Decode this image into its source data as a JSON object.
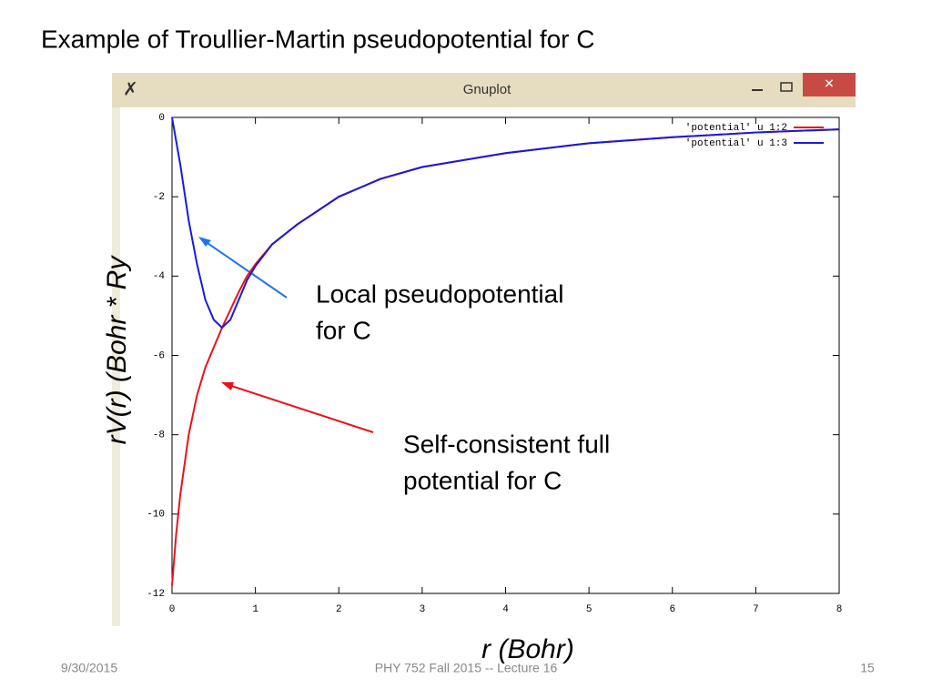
{
  "slide_title": "Example of Troullier-Martin pseudopotential for C",
  "window_title": "Gnuplot",
  "footer": {
    "date": "9/30/2015",
    "course": "PHY 752  Fall 2015 -- Lecture 16",
    "page": "15"
  },
  "chart_data": {
    "type": "line",
    "x_label": "r (Bohr)",
    "y_label": "rV(r)  (Bohr * Ry",
    "x": [
      0,
      0.05,
      0.1,
      0.2,
      0.3,
      0.4,
      0.5,
      0.6,
      0.7,
      0.8,
      0.9,
      1,
      1.2,
      1.5,
      2,
      2.5,
      3,
      4,
      5,
      6,
      7,
      8
    ],
    "series": [
      {
        "name": "'potential' u 1:2",
        "color": "#e8131b",
        "values": [
          -11.8,
          -10.5,
          -9.5,
          -8.0,
          -7.0,
          -6.3,
          -5.8,
          -5.3,
          -4.85,
          -4.4,
          -4.0,
          -3.7,
          -3.2,
          -2.7,
          -2.0,
          -1.55,
          -1.25,
          -0.9,
          -0.65,
          -0.5,
          -0.38,
          -0.3
        ]
      },
      {
        "name": "'potential' u 1:3",
        "color": "#1a1adc",
        "values": [
          0,
          -0.6,
          -1.2,
          -2.6,
          -3.7,
          -4.6,
          -5.1,
          -5.3,
          -5.1,
          -4.6,
          -4.1,
          -3.75,
          -3.2,
          -2.7,
          -2.0,
          -1.55,
          -1.25,
          -0.9,
          -0.65,
          -0.5,
          -0.38,
          -0.3
        ]
      }
    ],
    "xlim": [
      0,
      8
    ],
    "xticks": [
      0,
      1,
      2,
      3,
      4,
      5,
      6,
      7,
      8
    ],
    "ylim": [
      -12,
      0
    ],
    "yticks": [
      0,
      -2,
      -4,
      -6,
      -8,
      -10,
      -12
    ],
    "annotations": [
      {
        "lines": [
          "Local pseudopotential",
          "for C"
        ],
        "color": "#1e78e6"
      },
      {
        "lines": [
          "Self-consistent full",
          "potential for C"
        ],
        "color": "#e8131b"
      }
    ]
  }
}
